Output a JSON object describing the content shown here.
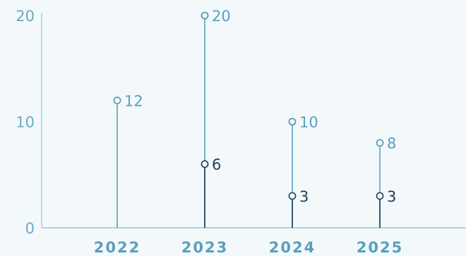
{
  "chart_data": {
    "type": "lollipop",
    "title": "",
    "xlabel": "",
    "ylabel": "",
    "categories": [
      "2022",
      "2023",
      "2024",
      "2025"
    ],
    "ylim": [
      0,
      20
    ],
    "yticks": [
      "0",
      "10",
      "20"
    ],
    "grid": false,
    "legend": "none",
    "series": [
      {
        "values": [
          12,
          20,
          10,
          8
        ],
        "color": "#4a97b4",
        "stem_color": "#5aa2bf",
        "label_color": "#5a9fbe"
      },
      {
        "values": [
          null,
          6,
          3,
          3
        ],
        "color": "#1d3f57",
        "stem_color": "#1d3f57",
        "label_color": "#1d3f57"
      }
    ],
    "axis_color": "#a8d3e4"
  }
}
